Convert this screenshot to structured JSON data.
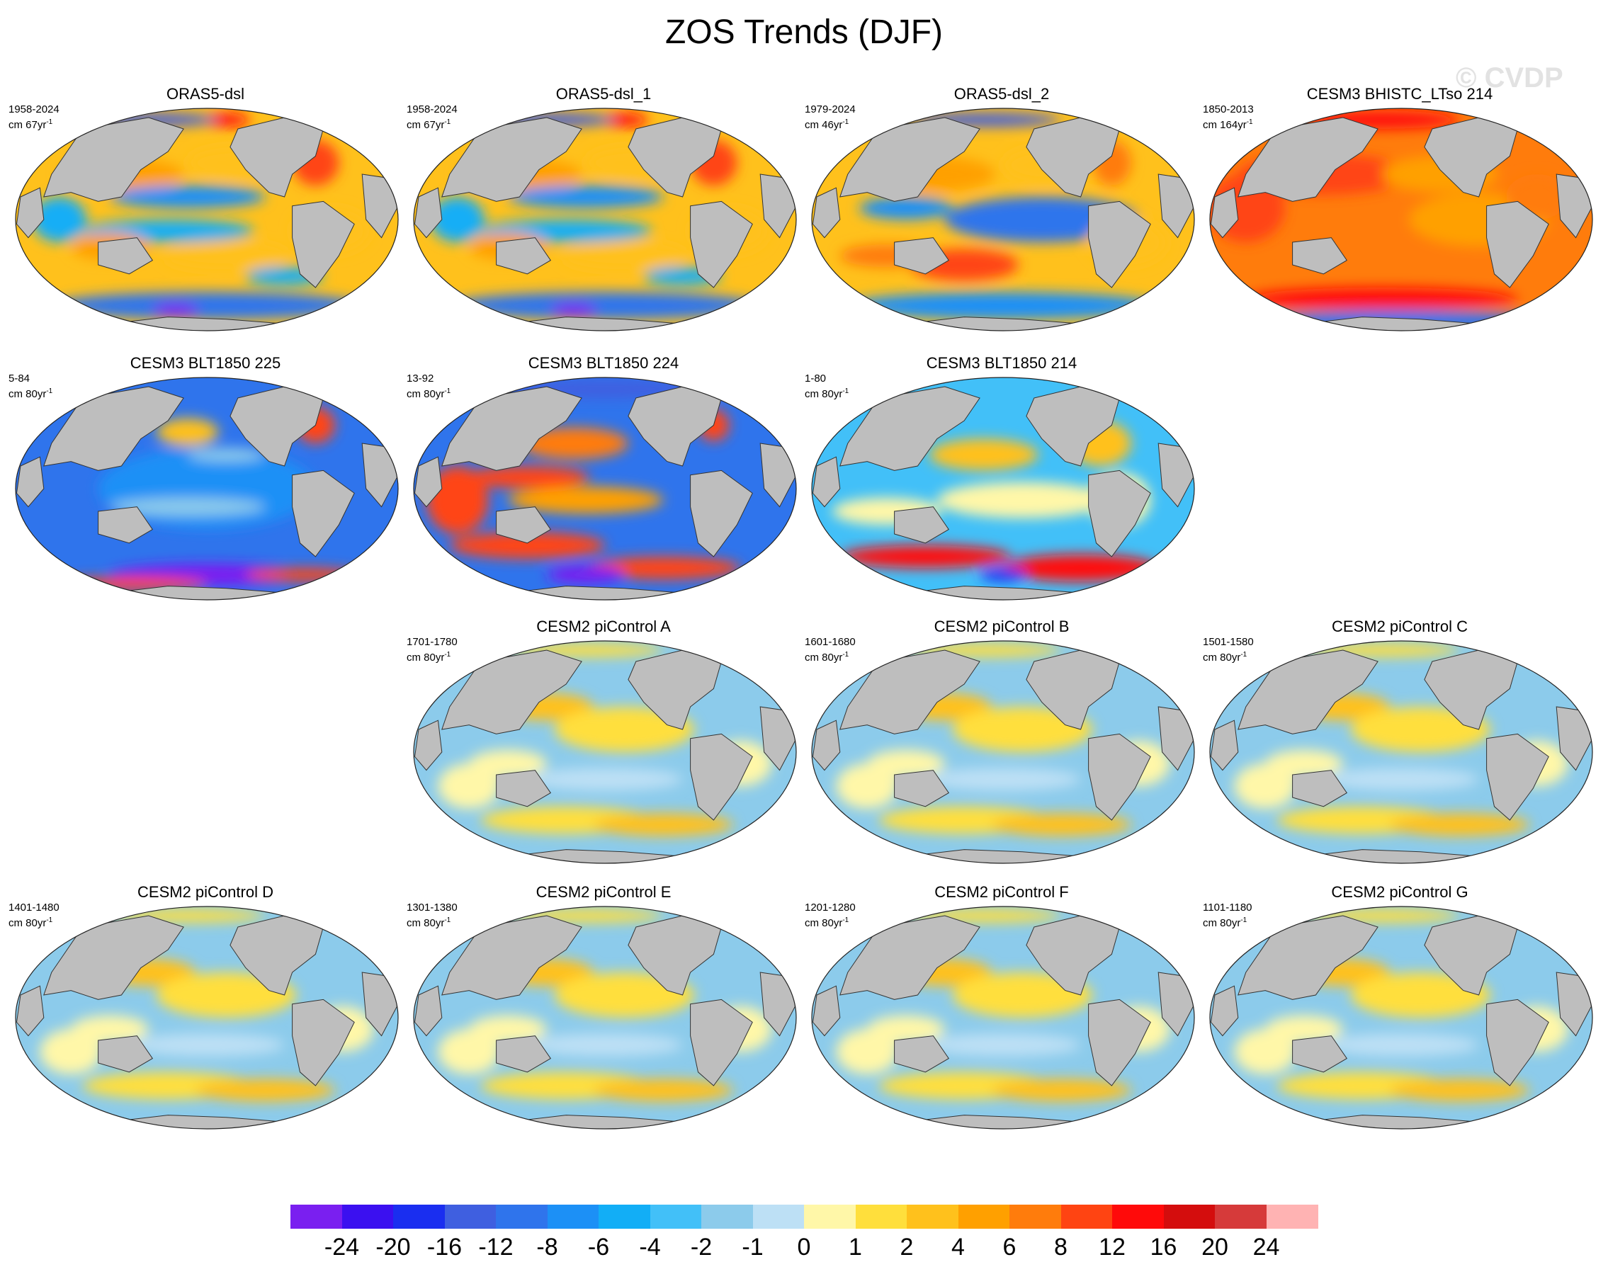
{
  "title": "ZOS Trends (DJF)",
  "watermark": "© CVDP",
  "units_prefix": "cm",
  "units_suffix": "yr",
  "units_exponent": "-1",
  "panels": [
    {
      "title": "ORAS5-dsl",
      "period": "1958-2024",
      "span": "67",
      "pattern": "obs"
    },
    {
      "title": "ORAS5-dsl_1",
      "period": "1958-2024",
      "span": "67",
      "pattern": "obs"
    },
    {
      "title": "ORAS5-dsl_2",
      "period": "1979-2024",
      "span": "46",
      "pattern": "obs2"
    },
    {
      "title": "CESM3 BHISTC_LTso 214",
      "period": "1850-2013",
      "span": "164",
      "pattern": "warm"
    },
    {
      "title": "CESM3 BLT1850 225",
      "period": "5-84",
      "span": "80",
      "pattern": "cold"
    },
    {
      "title": "CESM3 BLT1850 224",
      "period": "13-92",
      "span": "80",
      "pattern": "mixed"
    },
    {
      "title": "CESM3 BLT1850 214",
      "period": "1-80",
      "span": "80",
      "pattern": "mixed2"
    },
    {
      "title": "CESM2 piControl A",
      "period": "1701-1780",
      "span": "80",
      "pattern": "weak"
    },
    {
      "title": "CESM2 piControl B",
      "period": "1601-1680",
      "span": "80",
      "pattern": "weak"
    },
    {
      "title": "CESM2 piControl C",
      "period": "1501-1580",
      "span": "80",
      "pattern": "weak"
    },
    {
      "title": "CESM2 piControl D",
      "period": "1401-1480",
      "span": "80",
      "pattern": "weak"
    },
    {
      "title": "CESM2 piControl E",
      "period": "1301-1380",
      "span": "80",
      "pattern": "weak"
    },
    {
      "title": "CESM2 piControl F",
      "period": "1201-1280",
      "span": "80",
      "pattern": "weak"
    },
    {
      "title": "CESM2 piControl G",
      "period": "1101-1180",
      "span": "80",
      "pattern": "weak"
    }
  ],
  "colorbar": {
    "colors": [
      "#7a1ff0",
      "#3b10f0",
      "#1a2ef0",
      "#3f5fe0",
      "#2f74ec",
      "#1c90f6",
      "#12aef6",
      "#42c0f8",
      "#8ccbeb",
      "#bde0f5",
      "#fff7a8",
      "#ffdf3c",
      "#ffc11c",
      "#ffa000",
      "#ff7c0c",
      "#ff4412",
      "#ff0a0a",
      "#d40d0d",
      "#d63a3a",
      "#ffb3b3"
    ],
    "labels": [
      "-24",
      "-20",
      "-16",
      "-12",
      "-8",
      "-6",
      "-4",
      "-2",
      "-1",
      "0",
      "1",
      "2",
      "4",
      "6",
      "8",
      "12",
      "16",
      "20",
      "24"
    ]
  }
}
